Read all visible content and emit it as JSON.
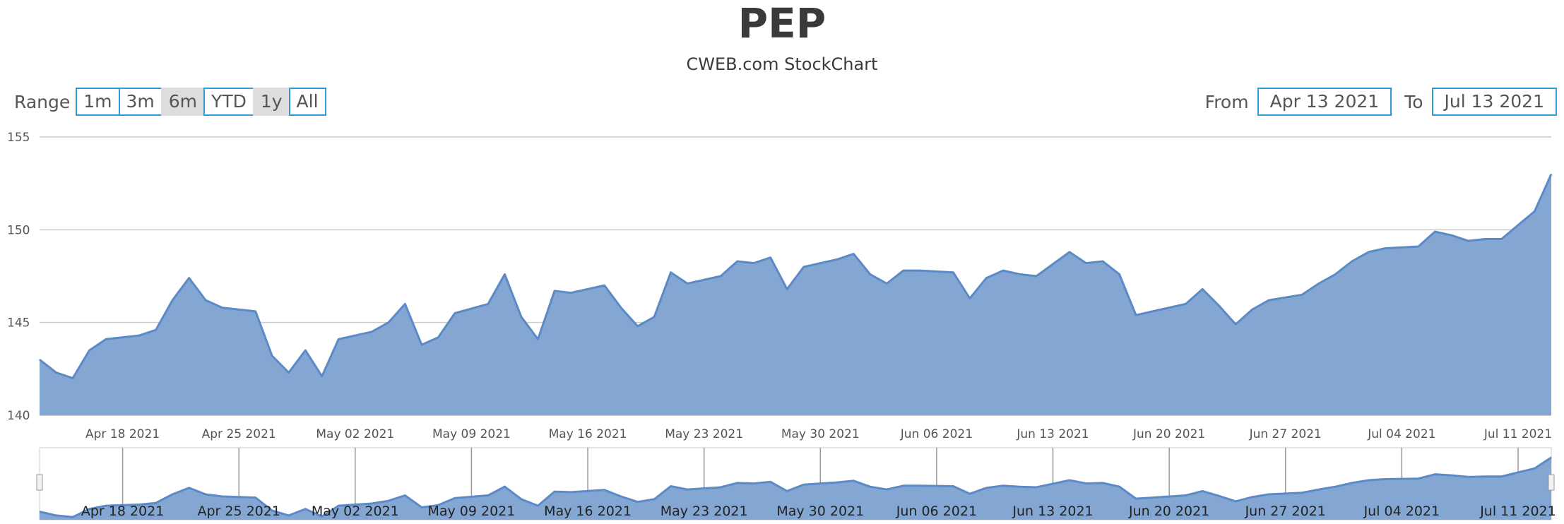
{
  "chart_data": {
    "type": "area",
    "title": "PEP",
    "subtitle": "CWEB.com StockChart",
    "x_type": "date",
    "ylim": [
      140,
      155
    ],
    "y_ticks": [
      "140",
      "145",
      "150",
      "155"
    ],
    "x_ticks": [
      "Apr 18 2021",
      "Apr 25 2021",
      "May 02 2021",
      "May 09 2021",
      "May 16 2021",
      "May 23 2021",
      "May 30 2021",
      "Jun 06 2021",
      "Jun 13 2021",
      "Jun 20 2021",
      "Jun 27 2021",
      "Jul 04 2021",
      "Jul 11 2021"
    ],
    "x_range": [
      "2021-04-13",
      "2021-07-13"
    ],
    "grid": true,
    "color": "#5b8ac6",
    "series": [
      {
        "values": [
          [
            "2021-04-13",
            143.0
          ],
          [
            "2021-04-14",
            142.3
          ],
          [
            "2021-04-15",
            142.0
          ],
          [
            "2021-04-16",
            143.5
          ],
          [
            "2021-04-17",
            144.1
          ],
          [
            "2021-04-19",
            144.3
          ],
          [
            "2021-04-20",
            144.6
          ],
          [
            "2021-04-21",
            146.2
          ],
          [
            "2021-04-22",
            147.4
          ],
          [
            "2021-04-23",
            146.2
          ],
          [
            "2021-04-24",
            145.8
          ],
          [
            "2021-04-26",
            145.6
          ],
          [
            "2021-04-27",
            143.2
          ],
          [
            "2021-04-28",
            142.3
          ],
          [
            "2021-04-29",
            143.5
          ],
          [
            "2021-04-30",
            142.1
          ],
          [
            "2021-05-01",
            144.1
          ],
          [
            "2021-05-03",
            144.5
          ],
          [
            "2021-05-04",
            145.0
          ],
          [
            "2021-05-05",
            146.0
          ],
          [
            "2021-05-06",
            143.8
          ],
          [
            "2021-05-07",
            144.2
          ],
          [
            "2021-05-08",
            145.5
          ],
          [
            "2021-05-10",
            146.0
          ],
          [
            "2021-05-11",
            147.6
          ],
          [
            "2021-05-12",
            145.3
          ],
          [
            "2021-05-13",
            144.1
          ],
          [
            "2021-05-14",
            146.7
          ],
          [
            "2021-05-15",
            146.6
          ],
          [
            "2021-05-17",
            147.0
          ],
          [
            "2021-05-18",
            145.8
          ],
          [
            "2021-05-19",
            144.8
          ],
          [
            "2021-05-20",
            145.3
          ],
          [
            "2021-05-21",
            147.7
          ],
          [
            "2021-05-22",
            147.1
          ],
          [
            "2021-05-24",
            147.5
          ],
          [
            "2021-05-25",
            148.3
          ],
          [
            "2021-05-26",
            148.2
          ],
          [
            "2021-05-27",
            148.5
          ],
          [
            "2021-05-28",
            146.8
          ],
          [
            "2021-05-29",
            148.0
          ],
          [
            "2021-05-31",
            148.4
          ],
          [
            "2021-06-01",
            148.7
          ],
          [
            "2021-06-02",
            147.6
          ],
          [
            "2021-06-03",
            147.1
          ],
          [
            "2021-06-04",
            147.8
          ],
          [
            "2021-06-05",
            147.8
          ],
          [
            "2021-06-07",
            147.7
          ],
          [
            "2021-06-08",
            146.3
          ],
          [
            "2021-06-09",
            147.4
          ],
          [
            "2021-06-10",
            147.8
          ],
          [
            "2021-06-11",
            147.6
          ],
          [
            "2021-06-12",
            147.5
          ],
          [
            "2021-06-14",
            148.8
          ],
          [
            "2021-06-15",
            148.2
          ],
          [
            "2021-06-16",
            148.3
          ],
          [
            "2021-06-17",
            147.6
          ],
          [
            "2021-06-18",
            145.4
          ],
          [
            "2021-06-19",
            145.6
          ],
          [
            "2021-06-21",
            146.0
          ],
          [
            "2021-06-22",
            146.8
          ],
          [
            "2021-06-23",
            145.9
          ],
          [
            "2021-06-24",
            144.9
          ],
          [
            "2021-06-25",
            145.7
          ],
          [
            "2021-06-26",
            146.2
          ],
          [
            "2021-06-28",
            146.5
          ],
          [
            "2021-06-29",
            147.1
          ],
          [
            "2021-06-30",
            147.6
          ],
          [
            "2021-07-01",
            148.3
          ],
          [
            "2021-07-02",
            148.8
          ],
          [
            "2021-07-03",
            149.0
          ],
          [
            "2021-07-05",
            149.1
          ],
          [
            "2021-07-06",
            149.9
          ],
          [
            "2021-07-07",
            149.7
          ],
          [
            "2021-07-08",
            149.4
          ],
          [
            "2021-07-09",
            149.5
          ],
          [
            "2021-07-10",
            149.5
          ],
          [
            "2021-07-12",
            151.0
          ],
          [
            "2021-07-13",
            153.0
          ]
        ]
      }
    ]
  },
  "range_selector": {
    "label": "Range",
    "buttons": [
      {
        "label": "1m",
        "selected": false
      },
      {
        "label": "3m",
        "selected": false
      },
      {
        "label": "6m",
        "selected": true
      },
      {
        "label": "YTD",
        "selected": false
      },
      {
        "label": "1y",
        "selected": true
      },
      {
        "label": "All",
        "selected": false
      }
    ]
  },
  "date_range": {
    "from_label": "From",
    "from_value": "Apr 13 2021",
    "to_label": "To",
    "to_value": "Jul 13 2021"
  }
}
